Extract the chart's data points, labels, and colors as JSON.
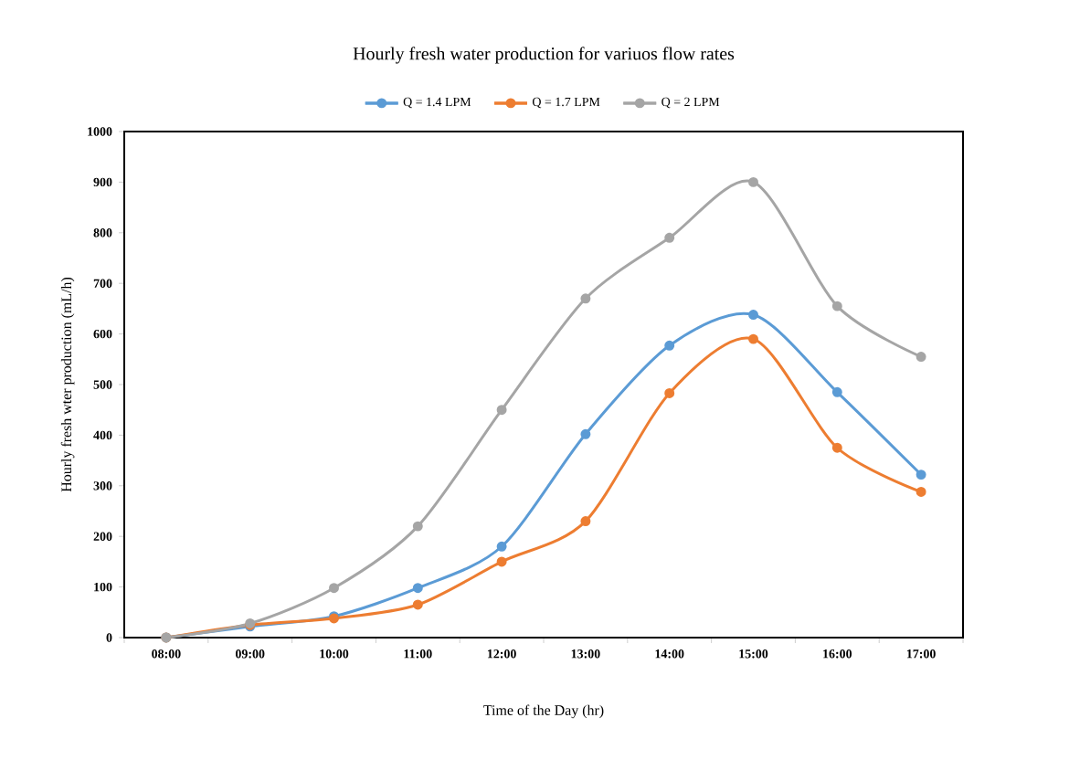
{
  "chart_data": {
    "type": "line",
    "title": "Hourly fresh water production for variuos flow rates",
    "xlabel": "Time of the Day (hr)",
    "ylabel": "Hourly fresh wter production (mL/h)",
    "categories": [
      "08:00",
      "09:00",
      "10:00",
      "11:00",
      "12:00",
      "13:00",
      "14:00",
      "15:00",
      "16:00",
      "17:00"
    ],
    "series": [
      {
        "name": "Q = 1.4 LPM",
        "color": "#5b9bd5",
        "values": [
          0,
          22,
          42,
          98,
          180,
          402,
          577,
          638,
          485,
          322
        ]
      },
      {
        "name": "Q = 1.7 LPM",
        "color": "#ed7d31",
        "values": [
          0,
          25,
          38,
          65,
          150,
          230,
          483,
          590,
          375,
          288
        ]
      },
      {
        "name": "Q = 2 LPM",
        "color": "#a5a5a5",
        "values": [
          0,
          28,
          98,
          220,
          450,
          670,
          790,
          900,
          655,
          555
        ]
      }
    ],
    "ylim": [
      0,
      1000
    ],
    "yticks": [
      0,
      100,
      200,
      300,
      400,
      500,
      600,
      700,
      800,
      900,
      1000
    ],
    "grid": false,
    "legend": "top",
    "marker": "circle",
    "line_style": "solid"
  }
}
